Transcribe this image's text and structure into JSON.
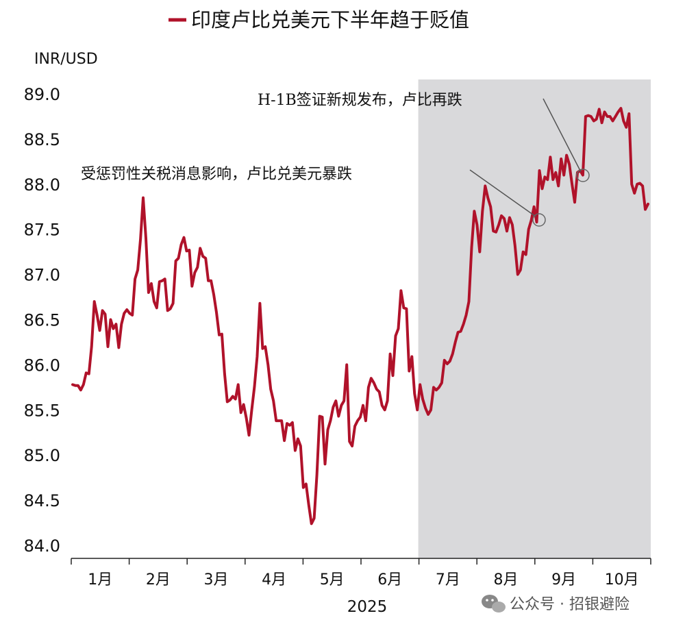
{
  "chart_data": {
    "type": "line",
    "title": "",
    "unit_label": "INR/USD",
    "xlabel": "2025",
    "ylabel": "INR/USD",
    "ylim": [
      84.0,
      89.0
    ],
    "yticks": [
      "89.0",
      "88.5",
      "88.0",
      "87.5",
      "87.0",
      "86.5",
      "86.0",
      "85.5",
      "85.0",
      "84.5",
      "84.0"
    ],
    "ytick_values": [
      89.0,
      88.5,
      88.0,
      87.5,
      87.0,
      86.5,
      86.0,
      85.5,
      85.0,
      84.5,
      84.0
    ],
    "months": [
      "1月",
      "2月",
      "3月",
      "4月",
      "5月",
      "6月",
      "7月",
      "8月",
      "9月",
      "10月"
    ],
    "grid": false,
    "legend_position": "top-center",
    "shaded_region": {
      "from_month": "7月",
      "to_month": "10月",
      "color": "#d9d9db"
    },
    "series": [
      {
        "name": "印度卢比兑美元下半年趋于贬值",
        "color": "#b0122a",
        "values": [
          85.78,
          85.77,
          85.77,
          85.72,
          85.78,
          85.91,
          85.9,
          86.2,
          86.7,
          86.55,
          86.38,
          86.6,
          86.56,
          86.2,
          86.5,
          86.4,
          86.45,
          86.19,
          86.45,
          86.57,
          86.61,
          86.57,
          86.55,
          86.95,
          87.05,
          87.39,
          87.85,
          87.4,
          86.8,
          86.9,
          86.7,
          86.63,
          86.92,
          86.93,
          86.95,
          86.6,
          86.62,
          86.68,
          87.15,
          87.18,
          87.33,
          87.41,
          87.26,
          87.27,
          86.87,
          87.02,
          87.08,
          87.29,
          87.2,
          87.18,
          86.93,
          86.93,
          86.78,
          86.58,
          86.33,
          86.34,
          85.9,
          85.59,
          85.61,
          85.65,
          85.62,
          85.78,
          85.47,
          85.56,
          85.41,
          85.22,
          85.5,
          85.76,
          86.09,
          86.68,
          86.18,
          86.2,
          86.0,
          85.73,
          85.6,
          85.38,
          85.38,
          85.38,
          85.16,
          85.35,
          85.33,
          85.36,
          85.05,
          85.18,
          85.1,
          84.64,
          84.68,
          84.45,
          84.24,
          84.3,
          84.78,
          85.43,
          85.42,
          84.9,
          85.28,
          85.38,
          85.53,
          85.6,
          85.43,
          85.55,
          85.6,
          86.0,
          85.15,
          85.1,
          85.32,
          85.38,
          85.42,
          85.55,
          85.38,
          85.75,
          85.85,
          85.8,
          85.73,
          85.7,
          85.55,
          85.5,
          85.6,
          86.12,
          85.88,
          86.32,
          86.4,
          86.82,
          86.63,
          86.62,
          85.93,
          86.09,
          85.68,
          85.5,
          85.78,
          85.62,
          85.52,
          85.45,
          85.5,
          85.75,
          85.72,
          85.75,
          85.8,
          86.05,
          86.01,
          86.04,
          86.12,
          86.25,
          86.36,
          86.37,
          86.45,
          86.55,
          86.7,
          87.3,
          87.7,
          87.55,
          87.25,
          87.7,
          87.98,
          87.85,
          87.75,
          87.48,
          87.47,
          87.55,
          87.65,
          87.62,
          87.48,
          87.63,
          87.55,
          87.32,
          87.0,
          87.05,
          87.25,
          87.22,
          87.5,
          87.6,
          87.75,
          87.58,
          88.15,
          87.95,
          88.08,
          88.05,
          88.3,
          88.05,
          88.13,
          87.98,
          88.28,
          88.1,
          88.32,
          88.22,
          88.0,
          87.8,
          88.13,
          88.15,
          88.1,
          88.75,
          88.76,
          88.75,
          88.7,
          88.72,
          88.83,
          88.68,
          88.8,
          88.75,
          88.75,
          88.7,
          88.75,
          88.8,
          88.84,
          88.7,
          88.63,
          88.78,
          88.0,
          87.9,
          88.0,
          88.01,
          87.98,
          87.72,
          87.78
        ]
      }
    ],
    "annotations": [
      {
        "text": "H-1B签证新规发布，卢比再跌",
        "target_value": 88.1,
        "target_month": "9月"
      },
      {
        "text": "受惩罚性关税消息影响，卢比兑美元暴跌",
        "target_value": 87.58,
        "target_month": "8月"
      }
    ],
    "watermark": "公众号 · 招银避险"
  }
}
